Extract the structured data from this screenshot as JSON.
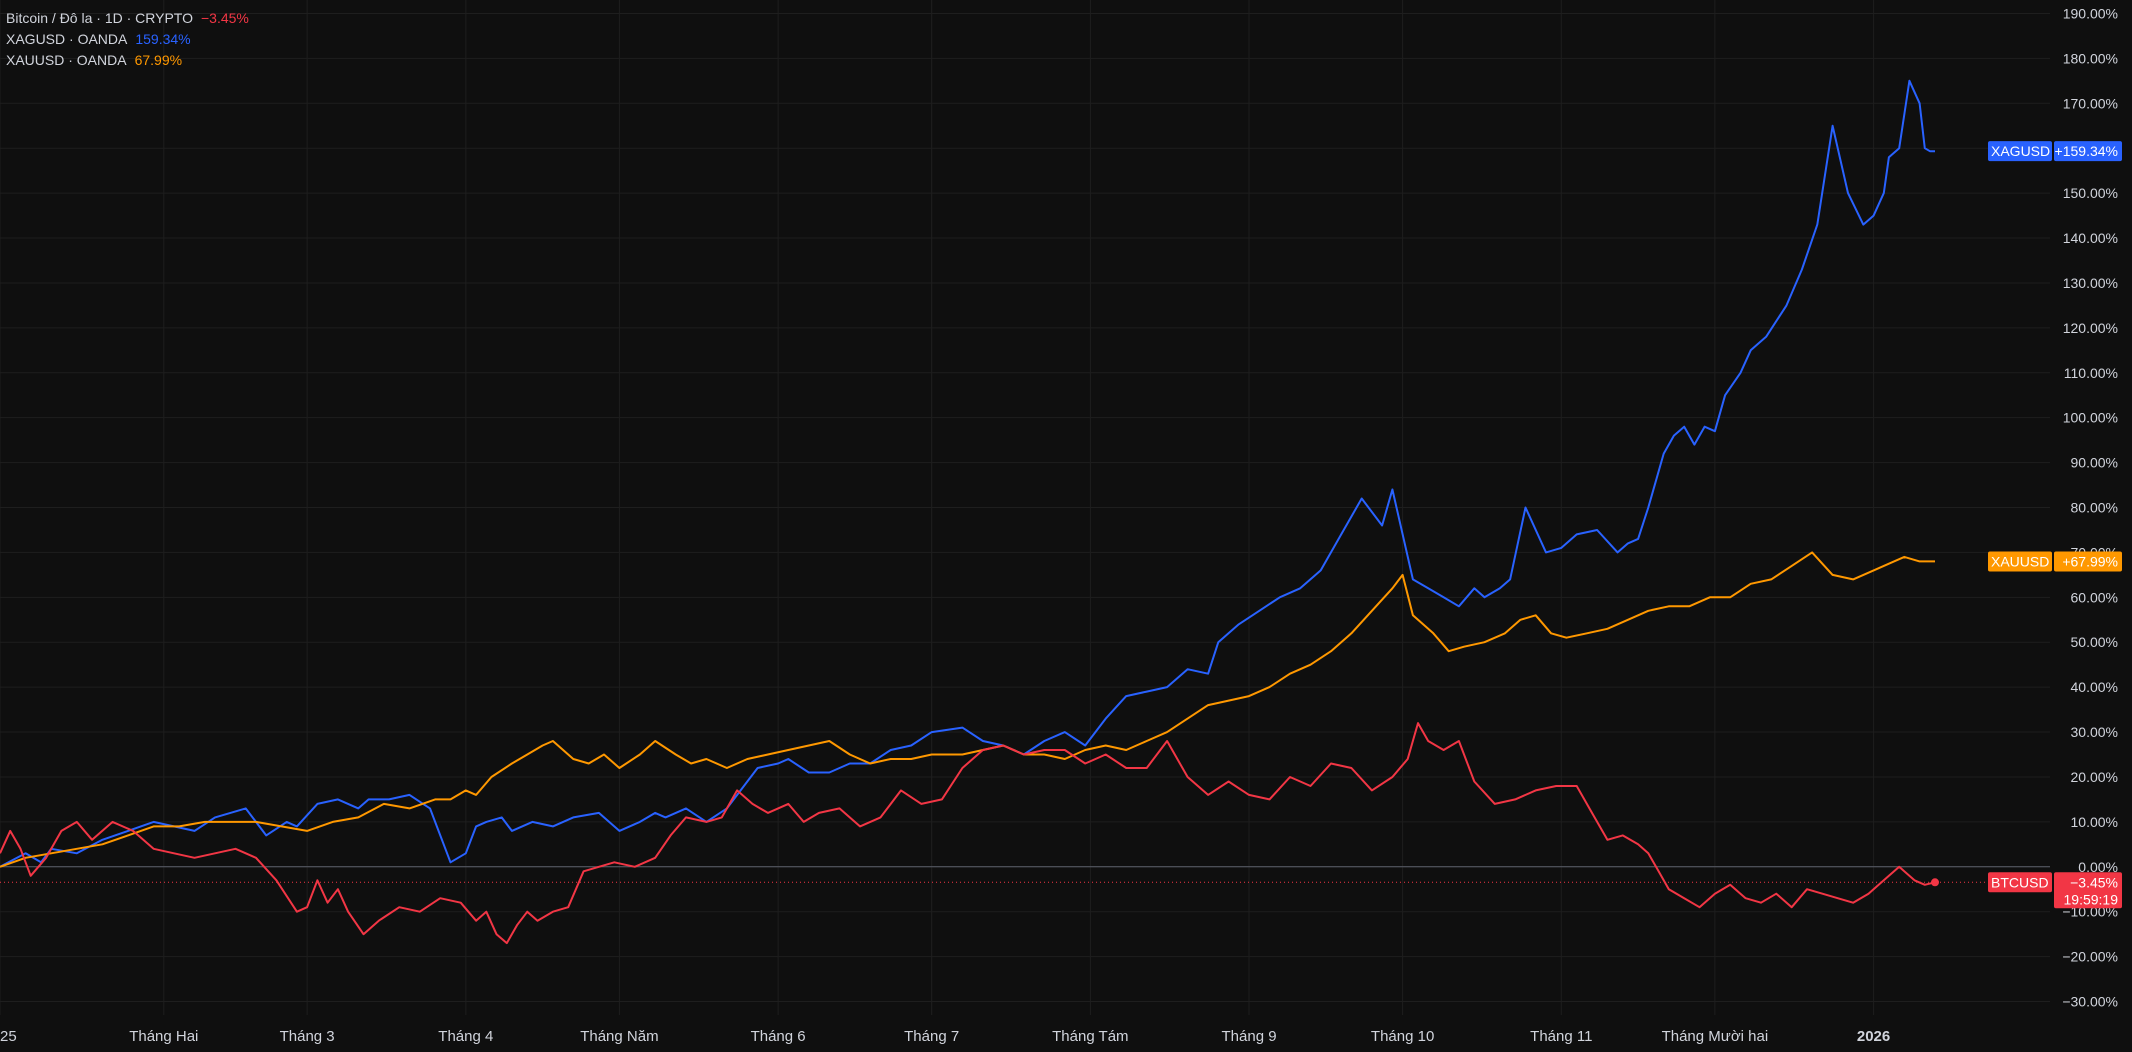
{
  "legend": {
    "btc": {
      "name": "Bitcoin / Đô la · 1D · CRYPTO",
      "value": "−3.45%"
    },
    "xag": {
      "name": "XAGUSD · OANDA",
      "value": "159.34%"
    },
    "xau": {
      "name": "XAUUSD · OANDA",
      "value": "67.99%"
    }
  },
  "colors": {
    "background": "#0f0f0f",
    "grid": "#1e1e1e",
    "axis_text": "#d1d4dc",
    "zero_line": "#5d606b",
    "btc": "#f23645",
    "xag": "#2962ff",
    "xau": "#ff9800"
  },
  "tags": {
    "xag": {
      "label": "XAGUSD",
      "value": "+159.34%"
    },
    "xau": {
      "label": "XAUUSD",
      "value": "+67.99%"
    },
    "btc": {
      "label": "BTCUSD",
      "value": "−3.45%",
      "countdown": "19:59:19"
    }
  },
  "chart_data": {
    "type": "line",
    "xlabel": "",
    "ylabel": "",
    "ylim": [
      -33,
      193
    ],
    "y_ticks": [
      190,
      180,
      170,
      160,
      150,
      140,
      130,
      120,
      110,
      100,
      90,
      80,
      70,
      60,
      50,
      40,
      30,
      20,
      10,
      0,
      -10,
      -20,
      -30
    ],
    "y_tick_labels": [
      "190.00%",
      "180.00%",
      "170.00%",
      "160.00%",
      "150.00%",
      "140.00%",
      "130.00%",
      "120.00%",
      "110.00%",
      "100.00%",
      "90.00%",
      "80.00%",
      "70.00%",
      "60.00%",
      "50.00%",
      "40.00%",
      "30.00%",
      "20.00%",
      "10.00%",
      "0.00%",
      "−10.00%",
      "−20.00%",
      "−30.00%"
    ],
    "x_tick_labels": [
      "25",
      "Tháng Hai",
      "Tháng 3",
      "Tháng 4",
      "Tháng Năm",
      "Tháng 6",
      "Tháng 7",
      "Tháng Tám",
      "Tháng 9",
      "Tháng 10",
      "Tháng 11",
      "Tháng Mười hai",
      "2026"
    ],
    "x_tick_bold": [
      false,
      false,
      false,
      false,
      false,
      false,
      false,
      false,
      false,
      false,
      false,
      false,
      true
    ],
    "x_tick_pos": [
      0,
      32,
      60,
      91,
      121,
      152,
      182,
      213,
      244,
      274,
      305,
      335,
      366
    ],
    "x_range": [
      0,
      378
    ],
    "grid": true,
    "series": [
      {
        "name": "XAGUSD",
        "key": "xag",
        "x": [
          0,
          5,
          8,
          10,
          15,
          20,
          25,
          30,
          34,
          38,
          42,
          48,
          52,
          56,
          58,
          62,
          66,
          70,
          72,
          76,
          80,
          84,
          88,
          91,
          93,
          95,
          98,
          100,
          104,
          108,
          112,
          117,
          121,
          125,
          128,
          130,
          134,
          138,
          142,
          148,
          152,
          154,
          158,
          162,
          166,
          170,
          174,
          178,
          182,
          188,
          192,
          196,
          200,
          204,
          208,
          212,
          216,
          220,
          224,
          228,
          232,
          236,
          238,
          242,
          246,
          250,
          254,
          258,
          262,
          266,
          270,
          272,
          276,
          279,
          282,
          285,
          288,
          290,
          293,
          295,
          298,
          302,
          305,
          308,
          312,
          316,
          318,
          320,
          322,
          325,
          327,
          329,
          331,
          333,
          335,
          337,
          340,
          342,
          345,
          349,
          352,
          355,
          358,
          361,
          364,
          366,
          368,
          369,
          371,
          373,
          375,
          376,
          377,
          378
        ],
        "y": [
          0,
          3,
          1,
          4,
          3,
          6,
          8,
          10,
          9,
          8,
          11,
          13,
          7,
          10,
          9,
          14,
          15,
          13,
          15,
          15,
          16,
          13,
          1,
          3,
          9,
          10,
          11,
          8,
          10,
          9,
          11,
          12,
          8,
          10,
          12,
          11,
          13,
          10,
          13,
          22,
          23,
          24,
          21,
          21,
          23,
          23,
          26,
          27,
          30,
          31,
          28,
          27,
          25,
          28,
          30,
          27,
          33,
          38,
          39,
          40,
          44,
          43,
          50,
          54,
          57,
          60,
          62,
          66,
          74,
          82,
          76,
          84,
          64,
          62,
          60,
          58,
          62,
          60,
          62,
          64,
          80,
          70,
          71,
          74,
          75,
          70,
          72,
          73,
          80,
          92,
          96,
          98,
          94,
          98,
          97,
          105,
          110,
          115,
          118,
          125,
          133,
          143,
          165,
          150,
          143,
          145,
          150,
          158,
          160,
          175,
          170,
          160,
          159.34,
          159.34
        ]
      },
      {
        "name": "XAUUSD",
        "key": "xau",
        "x": [
          0,
          5,
          10,
          15,
          20,
          25,
          30,
          35,
          40,
          45,
          50,
          55,
          60,
          65,
          70,
          75,
          80,
          85,
          88,
          91,
          93,
          96,
          100,
          103,
          106,
          108,
          112,
          115,
          118,
          121,
          125,
          128,
          132,
          135,
          138,
          142,
          146,
          150,
          154,
          158,
          162,
          166,
          170,
          174,
          178,
          182,
          188,
          192,
          196,
          200,
          204,
          208,
          212,
          216,
          220,
          224,
          228,
          232,
          236,
          240,
          244,
          248,
          252,
          256,
          260,
          264,
          268,
          272,
          274,
          276,
          280,
          283,
          286,
          290,
          294,
          297,
          300,
          303,
          306,
          310,
          314,
          318,
          322,
          326,
          330,
          334,
          338,
          342,
          346,
          350,
          354,
          358,
          362,
          366,
          370,
          372,
          375,
          378
        ],
        "y": [
          0,
          2,
          3,
          4,
          5,
          7,
          9,
          9,
          10,
          10,
          10,
          9,
          8,
          10,
          11,
          14,
          13,
          15,
          15,
          17,
          16,
          20,
          23,
          25,
          27,
          28,
          24,
          23,
          25,
          22,
          25,
          28,
          25,
          23,
          24,
          22,
          24,
          25,
          26,
          27,
          28,
          25,
          23,
          24,
          24,
          25,
          25,
          26,
          27,
          25,
          25,
          24,
          26,
          27,
          26,
          28,
          30,
          33,
          36,
          37,
          38,
          40,
          43,
          45,
          48,
          52,
          57,
          62,
          65,
          56,
          52,
          48,
          49,
          50,
          52,
          55,
          56,
          52,
          51,
          52,
          53,
          55,
          57,
          58,
          58,
          60,
          60,
          63,
          64,
          67,
          70,
          65,
          64,
          66,
          68,
          69,
          68,
          67.99
        ]
      },
      {
        "name": "BTCUSD",
        "key": "btc",
        "x": [
          0,
          2,
          4,
          6,
          9,
          12,
          15,
          18,
          22,
          26,
          30,
          34,
          38,
          42,
          46,
          50,
          54,
          58,
          60,
          62,
          64,
          66,
          68,
          71,
          74,
          78,
          82,
          86,
          90,
          93,
          95,
          97,
          99,
          101,
          103,
          105,
          108,
          111,
          114,
          117,
          120,
          124,
          128,
          131,
          134,
          138,
          141,
          144,
          147,
          150,
          154,
          157,
          160,
          164,
          168,
          172,
          176,
          180,
          184,
          188,
          192,
          196,
          200,
          204,
          208,
          212,
          216,
          220,
          224,
          228,
          232,
          236,
          240,
          244,
          248,
          252,
          256,
          260,
          264,
          268,
          272,
          275,
          277,
          279,
          282,
          285,
          288,
          292,
          296,
          300,
          304,
          308,
          311,
          314,
          317,
          320,
          322,
          324,
          326,
          329,
          332,
          335,
          338,
          341,
          344,
          347,
          350,
          353,
          356,
          359,
          362,
          365,
          368,
          371,
          374,
          376,
          378
        ],
        "y": [
          3,
          8,
          4,
          -2,
          2,
          8,
          10,
          6,
          10,
          8,
          4,
          3,
          2,
          3,
          4,
          2,
          -3,
          -10,
          -9,
          -3,
          -8,
          -5,
          -10,
          -15,
          -12,
          -9,
          -10,
          -7,
          -8,
          -12,
          -10,
          -15,
          -17,
          -13,
          -10,
          -12,
          -10,
          -9,
          -1,
          0,
          1,
          0,
          2,
          7,
          11,
          10,
          11,
          17,
          14,
          12,
          14,
          10,
          12,
          13,
          9,
          11,
          17,
          14,
          15,
          22,
          26,
          27,
          25,
          26,
          26,
          23,
          25,
          22,
          22,
          28,
          20,
          16,
          19,
          16,
          15,
          20,
          18,
          23,
          22,
          17,
          20,
          24,
          32,
          28,
          26,
          28,
          19,
          14,
          15,
          17,
          18,
          18,
          12,
          6,
          7,
          5,
          3,
          -1,
          -5,
          -7,
          -9,
          -6,
          -4,
          -7,
          -8,
          -6,
          -9,
          -5,
          -6,
          -7,
          -8,
          -6,
          -3,
          0,
          -3,
          -4,
          -3.45
        ]
      }
    ]
  }
}
